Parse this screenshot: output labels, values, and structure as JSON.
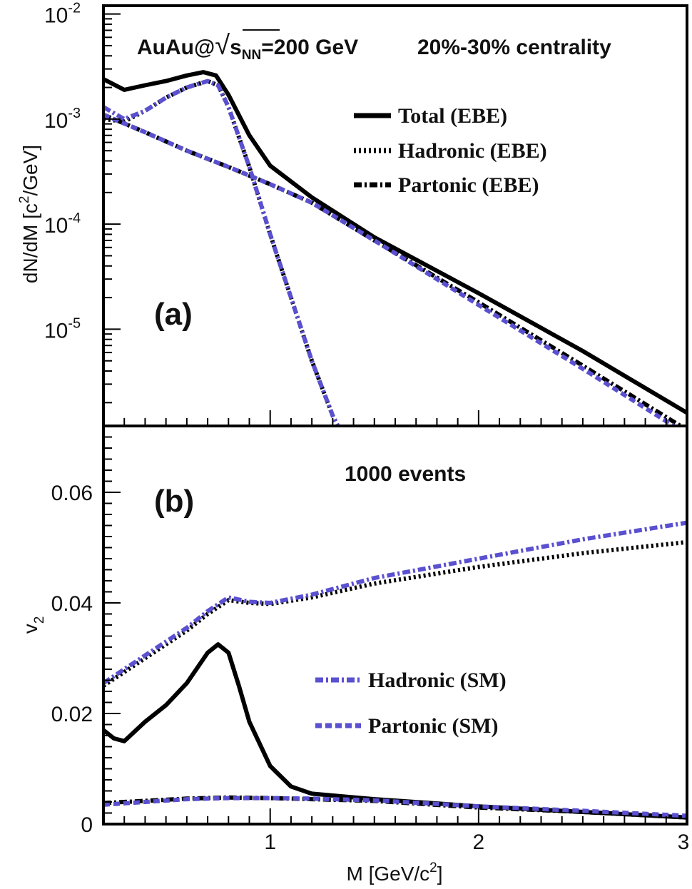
{
  "chart_data": [
    {
      "type": "line",
      "panel": "(a)",
      "annotation": {
        "prefix": "AuAu@",
        "sqrt_sym": "√",
        "s": "s",
        "sub": "NN",
        "energy": "=200 GeV",
        "centrality": "20%-30% centrality"
      },
      "ylabel": {
        "main": "dN/dM [c",
        "sup": "2",
        "tail": "/GeV]"
      },
      "yscale": "log",
      "xlim": [
        0.2,
        3.0
      ],
      "ylim": [
        1.2e-06,
        0.012
      ],
      "yticks": [
        {
          "value": 0.01,
          "base": "10",
          "exp": "-2"
        },
        {
          "value": 0.001,
          "base": "10",
          "exp": "-3"
        },
        {
          "value": 0.0001,
          "base": "10",
          "exp": "-4"
        },
        {
          "value": 1e-05,
          "base": "10",
          "exp": "-5"
        }
      ],
      "legend_position": "top-right",
      "series": [
        {
          "name": "Total (EBE)",
          "style": "solid",
          "color": "#000000",
          "x": [
            0.2,
            0.3,
            0.4,
            0.5,
            0.6,
            0.68,
            0.74,
            0.8,
            0.9,
            1.0,
            1.2,
            1.5,
            2.0,
            2.5,
            3.0
          ],
          "y": [
            0.0024,
            0.0019,
            0.0021,
            0.0023,
            0.0026,
            0.0028,
            0.0026,
            0.0017,
            0.0007,
            0.00036,
            0.00018,
            7.5e-05,
            2.2e-05,
            6.2e-06,
            1.6e-06
          ]
        },
        {
          "name": "Hadronic (EBE)",
          "style": "dotted",
          "color": "#000000",
          "x": [
            0.2,
            0.3,
            0.4,
            0.5,
            0.6,
            0.7,
            0.75,
            0.8,
            0.9,
            1.0,
            1.1,
            1.2,
            1.3,
            1.4
          ],
          "y": [
            0.001,
            0.00095,
            0.0012,
            0.0016,
            0.002,
            0.0023,
            0.0021,
            0.0013,
            0.00035,
            8e-05,
            2e-05,
            5e-06,
            1.5e-06,
            6e-07
          ]
        },
        {
          "name": "Partonic (EBE)",
          "style": "dashdot",
          "color": "#000000",
          "x": [
            0.2,
            0.4,
            0.6,
            0.8,
            1.0,
            1.2,
            1.5,
            2.0,
            2.5,
            3.0
          ],
          "y": [
            0.0011,
            0.00075,
            0.0005,
            0.00035,
            0.00024,
            0.00016,
            7e-05,
            1.8e-05,
            4.5e-06,
            1.1e-06
          ]
        },
        {
          "style": "dashdot",
          "color": "#5a50d0",
          "x": [
            0.2,
            0.3,
            0.4,
            0.5,
            0.6,
            0.7,
            0.75,
            0.8,
            0.9,
            1.0,
            1.1,
            1.2,
            1.3,
            1.4
          ],
          "y": [
            0.0013,
            0.001,
            0.0012,
            0.0016,
            0.002,
            0.0023,
            0.0021,
            0.0013,
            0.00035,
            8e-05,
            2e-05,
            5e-06,
            1.5e-06,
            6e-07
          ]
        },
        {
          "style": "dashed",
          "color": "#5a50d0",
          "x": [
            0.2,
            0.4,
            0.6,
            0.8,
            1.0,
            1.2,
            1.5,
            2.0,
            2.5,
            3.0
          ],
          "y": [
            0.0011,
            0.00075,
            0.0005,
            0.00035,
            0.00024,
            0.00016,
            7e-05,
            1.7e-05,
            4.2e-06,
            1e-06
          ]
        }
      ]
    },
    {
      "type": "line",
      "panel": "(b)",
      "annotation": {
        "events": "1000 events"
      },
      "xlabel": {
        "main": "M [GeV/c",
        "sup": "2",
        "tail": "]"
      },
      "ylabel": {
        "main": "v",
        "sub": "2"
      },
      "xlim": [
        0.2,
        3.0
      ],
      "ylim": [
        0,
        0.072
      ],
      "xticks": [
        "1",
        "2",
        "3"
      ],
      "yticks": [
        "0",
        "0.02",
        "0.04",
        "0.06"
      ],
      "legend_position": "center-right",
      "series": [
        {
          "style": "solid",
          "color": "#000000",
          "x": [
            0.2,
            0.25,
            0.3,
            0.4,
            0.5,
            0.6,
            0.7,
            0.75,
            0.8,
            0.85,
            0.9,
            1.0,
            1.1,
            1.2,
            1.5,
            2.0,
            2.5,
            3.0
          ],
          "y": [
            0.017,
            0.0155,
            0.015,
            0.0185,
            0.0215,
            0.0255,
            0.031,
            0.0325,
            0.031,
            0.025,
            0.0185,
            0.0105,
            0.0068,
            0.0055,
            0.0045,
            0.0032,
            0.0022,
            0.0012
          ]
        },
        {
          "style": "dotted",
          "color": "#000000",
          "x": [
            0.2,
            0.3,
            0.4,
            0.5,
            0.6,
            0.7,
            0.8,
            0.9,
            1.0,
            1.2,
            1.5,
            2.0,
            2.5,
            3.0
          ],
          "y": [
            0.025,
            0.0275,
            0.03,
            0.0325,
            0.035,
            0.038,
            0.0405,
            0.04,
            0.0398,
            0.041,
            0.0435,
            0.0465,
            0.049,
            0.051
          ]
        },
        {
          "style": "dashdot",
          "color": "#000000",
          "x": [
            0.2,
            0.4,
            0.6,
            0.8,
            1.0,
            1.2,
            1.5,
            2.0,
            2.5,
            3.0
          ],
          "y": [
            0.0038,
            0.0042,
            0.0046,
            0.0048,
            0.0047,
            0.0045,
            0.0042,
            0.003,
            0.0022,
            0.0012
          ]
        },
        {
          "name": "Hadronic (SM)",
          "style": "dashdot",
          "color": "#5a50d0",
          "x": [
            0.2,
            0.3,
            0.4,
            0.5,
            0.6,
            0.7,
            0.8,
            0.9,
            1.0,
            1.2,
            1.5,
            2.0,
            2.5,
            3.0
          ],
          "y": [
            0.0255,
            0.028,
            0.0305,
            0.033,
            0.0355,
            0.0385,
            0.041,
            0.0402,
            0.04,
            0.0415,
            0.0445,
            0.048,
            0.0515,
            0.0545
          ]
        },
        {
          "name": "Partonic (SM)",
          "style": "dashed",
          "color": "#5a50d0",
          "x": [
            0.2,
            0.4,
            0.6,
            0.8,
            1.0,
            1.2,
            1.5,
            2.0,
            2.5,
            3.0
          ],
          "y": [
            0.0035,
            0.004,
            0.0045,
            0.0047,
            0.0047,
            0.0046,
            0.0043,
            0.0032,
            0.0024,
            0.0015
          ]
        }
      ]
    }
  ]
}
